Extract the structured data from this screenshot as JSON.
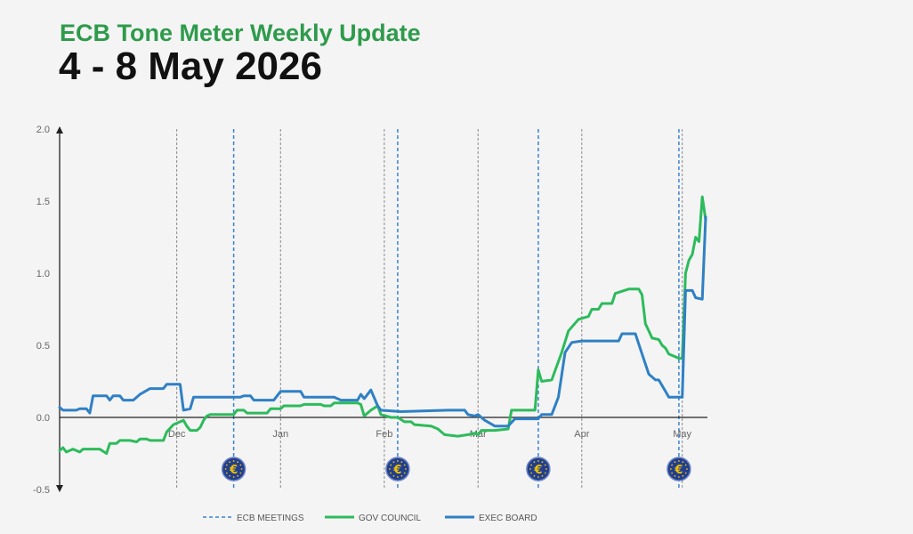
{
  "header": {
    "title": "ECB Tone Meter Weekly Update",
    "subtitle": "4 - 8 May 2026"
  },
  "colors": {
    "title": "#2e9b4b",
    "gov_council": "#2dbb5c",
    "exec_board": "#2f80c4",
    "ecb_meetings": "#3a84d0",
    "month_lines": "#8a8a8a",
    "euro_badge": "#223f8f",
    "euro_symbol": "#f2c200"
  },
  "chart_data": {
    "type": "line",
    "ylim": [
      -0.5,
      2.0
    ],
    "yticks": [
      "2.0",
      "1.5",
      "1.0",
      "0.5",
      "0.0",
      "-0.5"
    ],
    "x_domain": [
      "2025-10-27",
      "2026-05-08"
    ],
    "month_ticks": [
      {
        "label": "Dec",
        "date": "2025-12-01"
      },
      {
        "label": "Jan",
        "date": "2026-01-01"
      },
      {
        "label": "Feb",
        "date": "2026-02-01"
      },
      {
        "label": "Mar",
        "date": "2026-03-01"
      },
      {
        "label": "Apr",
        "date": "2026-04-01"
      },
      {
        "label": "May",
        "date": "2026-05-01"
      }
    ],
    "ecb_meeting_dates": [
      "2025-12-18",
      "2026-02-05",
      "2026-03-19",
      "2026-04-30"
    ],
    "ecb_meeting_icon": "euro-icon",
    "series": [
      {
        "name": "GOV COUNCIL",
        "points": [
          [
            "2025-10-27",
            -0.23
          ],
          [
            "2025-10-28",
            -0.21
          ],
          [
            "2025-10-29",
            -0.24
          ],
          [
            "2025-10-31",
            -0.22
          ],
          [
            "2025-11-02",
            -0.24
          ],
          [
            "2025-11-03",
            -0.22
          ],
          [
            "2025-11-08",
            -0.22
          ],
          [
            "2025-11-10",
            -0.25
          ],
          [
            "2025-11-11",
            -0.18
          ],
          [
            "2025-11-13",
            -0.18
          ],
          [
            "2025-11-14",
            -0.16
          ],
          [
            "2025-11-17",
            -0.16
          ],
          [
            "2025-11-19",
            -0.17
          ],
          [
            "2025-11-20",
            -0.15
          ],
          [
            "2025-11-22",
            -0.15
          ],
          [
            "2025-11-23",
            -0.16
          ],
          [
            "2025-11-27",
            -0.16
          ],
          [
            "2025-11-28",
            -0.1
          ],
          [
            "2025-11-30",
            -0.05
          ],
          [
            "2025-12-02",
            -0.03
          ],
          [
            "2025-12-03",
            -0.02
          ],
          [
            "2025-12-04",
            -0.06
          ],
          [
            "2025-12-05",
            -0.09
          ],
          [
            "2025-12-07",
            -0.09
          ],
          [
            "2025-12-08",
            -0.07
          ],
          [
            "2025-12-09",
            -0.02
          ],
          [
            "2025-12-10",
            0.01
          ],
          [
            "2025-12-11",
            0.02
          ],
          [
            "2025-12-18",
            0.02
          ],
          [
            "2025-12-19",
            0.05
          ],
          [
            "2025-12-21",
            0.05
          ],
          [
            "2025-12-22",
            0.03
          ],
          [
            "2025-12-28",
            0.03
          ],
          [
            "2025-12-29",
            0.06
          ],
          [
            "2026-01-01",
            0.06
          ],
          [
            "2026-01-02",
            0.08
          ],
          [
            "2026-01-07",
            0.08
          ],
          [
            "2026-01-08",
            0.09
          ],
          [
            "2026-01-13",
            0.09
          ],
          [
            "2026-01-14",
            0.08
          ],
          [
            "2026-01-16",
            0.08
          ],
          [
            "2026-01-17",
            0.1
          ],
          [
            "2026-01-24",
            0.1
          ],
          [
            "2026-01-25",
            0.09
          ],
          [
            "2026-01-26",
            0.01
          ],
          [
            "2026-01-28",
            0.05
          ],
          [
            "2026-01-30",
            0.08
          ],
          [
            "2026-01-31",
            0.02
          ],
          [
            "2026-02-03",
            0.0
          ],
          [
            "2026-02-05",
            0.0
          ],
          [
            "2026-02-07",
            -0.03
          ],
          [
            "2026-02-09",
            -0.03
          ],
          [
            "2026-02-10",
            -0.05
          ],
          [
            "2026-02-15",
            -0.06
          ],
          [
            "2026-02-17",
            -0.08
          ],
          [
            "2026-02-19",
            -0.12
          ],
          [
            "2026-02-23",
            -0.13
          ],
          [
            "2026-02-26",
            -0.12
          ],
          [
            "2026-02-28",
            -0.11
          ],
          [
            "2026-03-01",
            -0.12
          ],
          [
            "2026-03-02",
            -0.09
          ],
          [
            "2026-03-06",
            -0.09
          ],
          [
            "2026-03-10",
            -0.08
          ],
          [
            "2026-03-11",
            0.05
          ],
          [
            "2026-03-18",
            0.05
          ],
          [
            "2026-03-19",
            0.33
          ],
          [
            "2026-03-20",
            0.25
          ],
          [
            "2026-03-23",
            0.26
          ],
          [
            "2026-03-26",
            0.45
          ],
          [
            "2026-03-28",
            0.6
          ],
          [
            "2026-03-31",
            0.68
          ],
          [
            "2026-04-03",
            0.7
          ],
          [
            "2026-04-04",
            0.75
          ],
          [
            "2026-04-06",
            0.75
          ],
          [
            "2026-04-07",
            0.79
          ],
          [
            "2026-04-10",
            0.79
          ],
          [
            "2026-04-11",
            0.86
          ],
          [
            "2026-04-15",
            0.89
          ],
          [
            "2026-04-18",
            0.89
          ],
          [
            "2026-04-19",
            0.85
          ],
          [
            "2026-04-20",
            0.65
          ],
          [
            "2026-04-21",
            0.6
          ],
          [
            "2026-04-22",
            0.55
          ],
          [
            "2026-04-24",
            0.54
          ],
          [
            "2026-04-25",
            0.5
          ],
          [
            "2026-04-26",
            0.48
          ],
          [
            "2026-04-27",
            0.44
          ],
          [
            "2026-04-30",
            0.41
          ],
          [
            "2026-05-01",
            0.41
          ],
          [
            "2026-05-02",
            1.0
          ],
          [
            "2026-05-03",
            1.09
          ],
          [
            "2026-05-04",
            1.13
          ],
          [
            "2026-05-05",
            1.25
          ],
          [
            "2026-05-06",
            1.22
          ],
          [
            "2026-05-07",
            1.53
          ],
          [
            "2026-05-08",
            1.37
          ]
        ]
      },
      {
        "name": "EXEC BOARD",
        "points": [
          [
            "2025-10-27",
            0.07
          ],
          [
            "2025-10-28",
            0.05
          ],
          [
            "2025-11-01",
            0.05
          ],
          [
            "2025-11-02",
            0.06
          ],
          [
            "2025-11-04",
            0.06
          ],
          [
            "2025-11-05",
            0.03
          ],
          [
            "2025-11-06",
            0.15
          ],
          [
            "2025-11-10",
            0.15
          ],
          [
            "2025-11-11",
            0.12
          ],
          [
            "2025-11-12",
            0.15
          ],
          [
            "2025-11-14",
            0.15
          ],
          [
            "2025-11-15",
            0.12
          ],
          [
            "2025-11-18",
            0.12
          ],
          [
            "2025-11-20",
            0.16
          ],
          [
            "2025-11-23",
            0.2
          ],
          [
            "2025-11-27",
            0.2
          ],
          [
            "2025-11-28",
            0.23
          ],
          [
            "2025-12-02",
            0.23
          ],
          [
            "2025-12-03",
            0.05
          ],
          [
            "2025-12-05",
            0.06
          ],
          [
            "2025-12-06",
            0.14
          ],
          [
            "2025-12-20",
            0.14
          ],
          [
            "2025-12-21",
            0.15
          ],
          [
            "2025-12-23",
            0.15
          ],
          [
            "2025-12-24",
            0.12
          ],
          [
            "2025-12-30",
            0.12
          ],
          [
            "2026-01-01",
            0.18
          ],
          [
            "2026-01-07",
            0.18
          ],
          [
            "2026-01-08",
            0.14
          ],
          [
            "2026-01-17",
            0.14
          ],
          [
            "2026-01-19",
            0.12
          ],
          [
            "2026-01-24",
            0.12
          ],
          [
            "2026-01-25",
            0.16
          ],
          [
            "2026-01-26",
            0.13
          ],
          [
            "2026-01-28",
            0.19
          ],
          [
            "2026-01-30",
            0.08
          ],
          [
            "2026-01-31",
            0.05
          ],
          [
            "2026-02-06",
            0.04
          ],
          [
            "2026-02-20",
            0.05
          ],
          [
            "2026-02-25",
            0.05
          ],
          [
            "2026-02-26",
            0.02
          ],
          [
            "2026-02-28",
            0.01
          ],
          [
            "2026-03-01",
            0.02
          ],
          [
            "2026-03-03",
            -0.02
          ],
          [
            "2026-03-06",
            -0.06
          ],
          [
            "2026-03-10",
            -0.06
          ],
          [
            "2026-03-12",
            -0.01
          ],
          [
            "2026-03-19",
            -0.01
          ],
          [
            "2026-03-20",
            0.02
          ],
          [
            "2026-03-23",
            0.02
          ],
          [
            "2026-03-25",
            0.14
          ],
          [
            "2026-03-27",
            0.45
          ],
          [
            "2026-03-29",
            0.52
          ],
          [
            "2026-04-01",
            0.53
          ],
          [
            "2026-04-12",
            0.53
          ],
          [
            "2026-04-13",
            0.58
          ],
          [
            "2026-04-17",
            0.58
          ],
          [
            "2026-04-19",
            0.44
          ],
          [
            "2026-04-21",
            0.3
          ],
          [
            "2026-04-23",
            0.26
          ],
          [
            "2026-04-24",
            0.26
          ],
          [
            "2026-04-26",
            0.18
          ],
          [
            "2026-04-27",
            0.14
          ],
          [
            "2026-05-01",
            0.14
          ],
          [
            "2026-05-02",
            0.88
          ],
          [
            "2026-05-04",
            0.88
          ],
          [
            "2026-05-05",
            0.83
          ],
          [
            "2026-05-07",
            0.82
          ],
          [
            "2026-05-08",
            1.39
          ]
        ]
      }
    ],
    "legend": {
      "placement": "bottom",
      "items": [
        {
          "label": "ECB MEETINGS",
          "style": "dashed",
          "key": "ecb_meetings"
        },
        {
          "label": "GOV COUNCIL",
          "style": "solid",
          "key": "gov_council"
        },
        {
          "label": "EXEC BOARD",
          "style": "solid",
          "key": "exec_board"
        }
      ]
    }
  }
}
